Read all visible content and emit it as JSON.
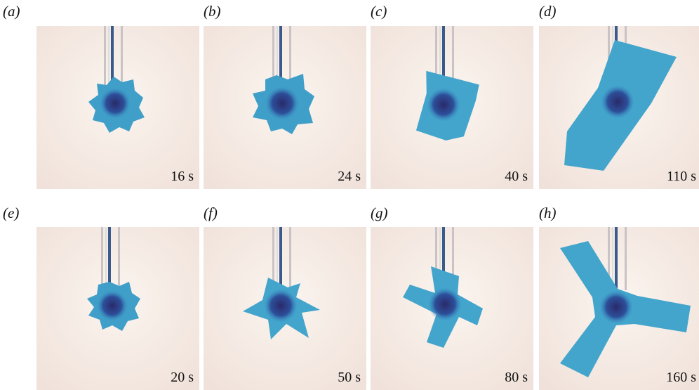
{
  "panels": [
    {
      "label": "(a)",
      "time": "16 s"
    },
    {
      "label": "(b)",
      "time": "24 s"
    },
    {
      "label": "(c)",
      "time": "40 s"
    },
    {
      "label": "(d)",
      "time": "110 s"
    },
    {
      "label": "(e)",
      "time": "20 s"
    },
    {
      "label": "(f)",
      "time": "50 s"
    },
    {
      "label": "(g)",
      "time": "80 s"
    },
    {
      "label": "(h)",
      "time": "160 s"
    }
  ]
}
